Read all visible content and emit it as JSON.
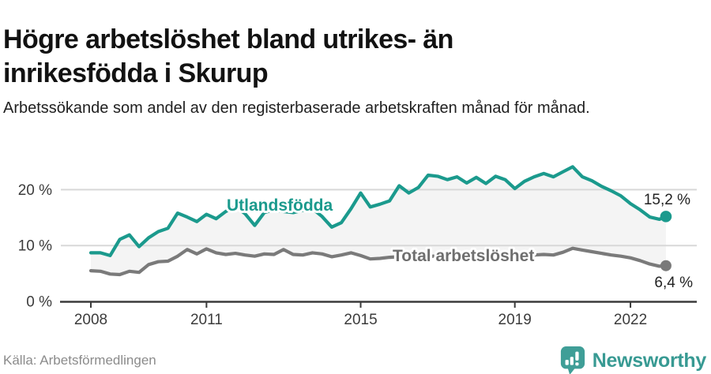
{
  "header": {
    "title": "Högre arbetslöshet bland utrikes- än inrikesfödda i Skurup",
    "subtitle": "Arbetssökande som andel av den registerbaserade arbetskraften månad för månad."
  },
  "footer": {
    "source": "Källa: Arbetsförmedlingen",
    "brand": "Newsworthy"
  },
  "colors": {
    "accent_teal": "#1b9a8d",
    "series_gray": "#7a7a7a",
    "area_fill": "#f4f4f4",
    "gridline": "#d8d8d8",
    "axis": "#3b3b3b",
    "logo_teal": "#3f9e97"
  },
  "chart_data": {
    "type": "line",
    "title": "Högre arbetslöshet bland utrikes- än inrikesfödda i Skurup",
    "xlabel": "",
    "ylabel": "",
    "unit": "%",
    "grid": "horizontal",
    "area_between_series": true,
    "xlim": [
      2008,
      2022.92
    ],
    "ylim": [
      0,
      24.6
    ],
    "x_ticks": [
      {
        "value": 2008,
        "label": "2008"
      },
      {
        "value": 2011,
        "label": "2011"
      },
      {
        "value": 2015,
        "label": "2015"
      },
      {
        "value": 2019,
        "label": "2019"
      },
      {
        "value": 2022,
        "label": "2022"
      }
    ],
    "y_ticks": [
      {
        "value": 0,
        "label": "0 %"
      },
      {
        "value": 10,
        "label": "10 %"
      },
      {
        "value": 20,
        "label": "20 %"
      }
    ],
    "x": [
      2008,
      2008.25,
      2008.5,
      2008.75,
      2009,
      2009.25,
      2009.5,
      2009.75,
      2010,
      2010.25,
      2010.5,
      2010.75,
      2011,
      2011.25,
      2011.5,
      2011.75,
      2012,
      2012.25,
      2012.5,
      2012.75,
      2013,
      2013.25,
      2013.5,
      2013.75,
      2014,
      2014.25,
      2014.5,
      2014.75,
      2015,
      2015.25,
      2015.5,
      2015.75,
      2016,
      2016.25,
      2016.5,
      2016.75,
      2017,
      2017.25,
      2017.5,
      2017.75,
      2018,
      2018.25,
      2018.5,
      2018.75,
      2019,
      2019.25,
      2019.5,
      2019.75,
      2020,
      2020.25,
      2020.5,
      2020.75,
      2021,
      2021.25,
      2021.5,
      2021.75,
      2022,
      2022.25,
      2022.5,
      2022.75,
      2022.92
    ],
    "series": [
      {
        "name": "Utlandsfödda",
        "color": "#1b9a8d",
        "end_label": "15,2 %",
        "end_value": 15.2,
        "values": [
          8.7,
          8.7,
          8.2,
          11.1,
          11.9,
          9.8,
          11.4,
          12.5,
          13.1,
          15.8,
          15.1,
          14.3,
          15.6,
          14.8,
          16.1,
          17.0,
          15.7,
          13.6,
          15.9,
          16.4,
          16.1,
          15.9,
          16.3,
          16.6,
          15.2,
          13.3,
          14.1,
          16.6,
          19.4,
          16.9,
          17.4,
          18.0,
          20.7,
          19.4,
          20.4,
          22.6,
          22.4,
          21.8,
          22.3,
          21.2,
          22.2,
          21.1,
          22.4,
          21.8,
          20.2,
          21.5,
          22.3,
          22.9,
          22.3,
          23.2,
          24.1,
          22.3,
          21.6,
          20.6,
          19.8,
          18.9,
          17.5,
          16.4,
          15.1,
          14.7,
          15.2
        ]
      },
      {
        "name": "Total arbetslöshet",
        "color": "#7a7a7a",
        "end_label": "6,4 %",
        "end_value": 6.4,
        "values": [
          5.5,
          5.4,
          4.9,
          4.8,
          5.4,
          5.2,
          6.6,
          7.1,
          7.2,
          8.1,
          9.3,
          8.5,
          9.4,
          8.7,
          8.4,
          8.6,
          8.3,
          8.1,
          8.5,
          8.4,
          9.3,
          8.4,
          8.3,
          8.7,
          8.5,
          8.0,
          8.3,
          8.7,
          8.2,
          7.6,
          7.7,
          7.9,
          8.0,
          7.9,
          8.1,
          8.0,
          8.2,
          8.1,
          8.0,
          8.1,
          8.2,
          8.0,
          8.1,
          8.2,
          8.0,
          8.1,
          8.3,
          8.4,
          8.3,
          8.8,
          9.5,
          9.2,
          8.9,
          8.6,
          8.3,
          8.1,
          7.8,
          7.3,
          6.7,
          6.3,
          6.4
        ]
      }
    ]
  }
}
